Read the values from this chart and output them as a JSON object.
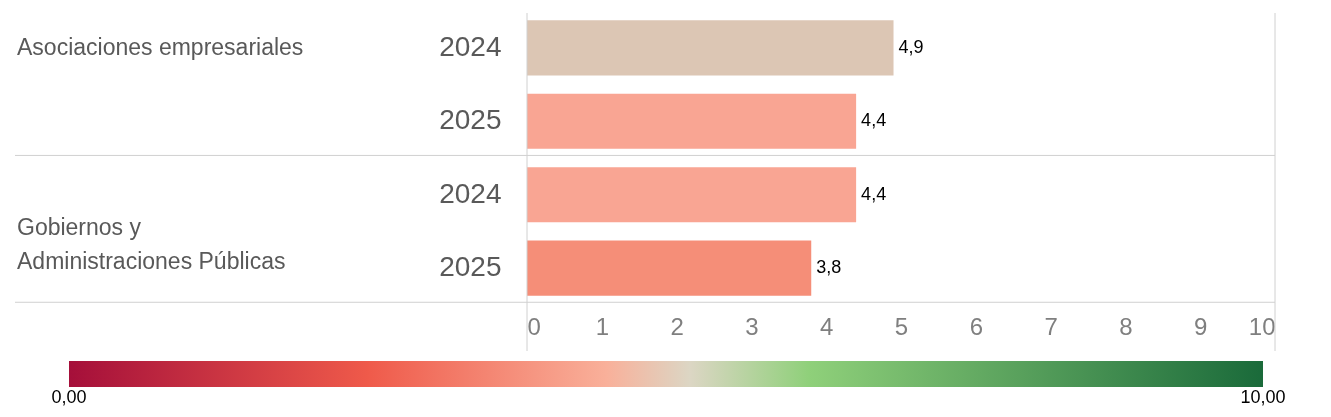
{
  "chart_data": {
    "type": "bar",
    "orientation": "horizontal",
    "categories": [
      "2024",
      "2025",
      "2024",
      "2025"
    ],
    "values": [
      4.9,
      4.4,
      4.4,
      3.8
    ],
    "colors": [
      "#dcc6b4",
      "#f9a593",
      "#f9a593",
      "#f58e78"
    ],
    "value_labels": [
      "4,9",
      "4,4",
      "4,4",
      "3,8"
    ],
    "annotations": [
      "Asociaciones empresariales",
      "Gobiernos y Administraciones Públicas"
    ],
    "xlim": [
      0,
      10
    ],
    "xticks": [
      0,
      1,
      2,
      3,
      4,
      5,
      6,
      7,
      8,
      9,
      10
    ],
    "grid": false,
    "clim": [
      0,
      10
    ],
    "cticks": [
      {
        "value": 0,
        "label": "0,00"
      },
      {
        "value": 10,
        "label": "10,00"
      }
    ]
  }
}
